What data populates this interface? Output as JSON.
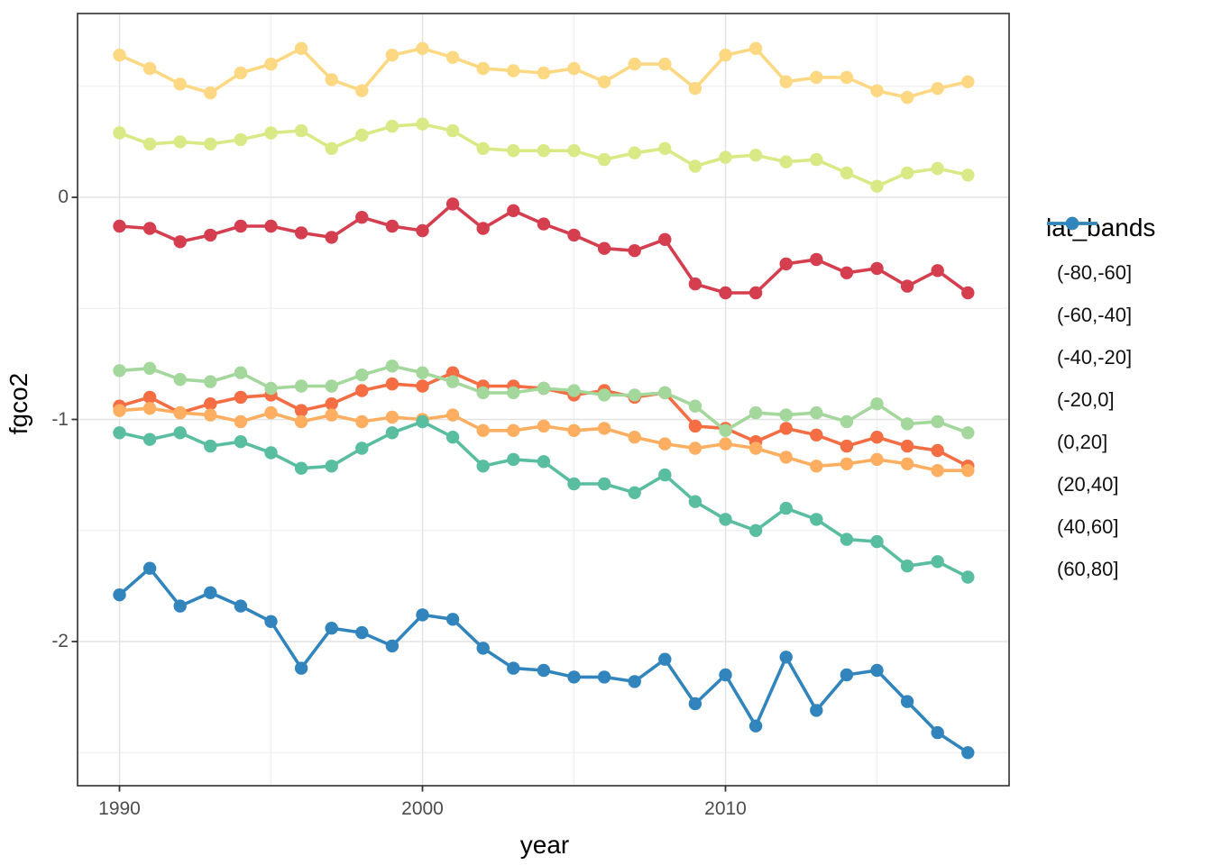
{
  "chart_data": {
    "type": "line",
    "title": "",
    "xlabel": "year",
    "ylabel": "fgco2",
    "legend_title": "lat_bands",
    "legend_position": "right",
    "grid": true,
    "xlim": [
      1988.6,
      2019.4
    ],
    "ylim": [
      -2.7,
      0.83
    ],
    "x_ticks": [
      "1990",
      "2000",
      "2010"
    ],
    "x_tick_values": [
      1990,
      2000,
      2010
    ],
    "y_ticks": [
      "0",
      "-1",
      "-2"
    ],
    "y_tick_values": [
      0,
      -1,
      -2
    ],
    "x_minor_gridlines": [
      1995,
      2005,
      2015
    ],
    "y_minor_gridlines": [
      0.5,
      -0.5,
      -1.5,
      -2.5
    ],
    "x": [
      1990,
      1991,
      1992,
      1993,
      1994,
      1995,
      1996,
      1997,
      1998,
      1999,
      2000,
      2001,
      2002,
      2003,
      2004,
      2005,
      2006,
      2007,
      2008,
      2009,
      2010,
      2011,
      2012,
      2013,
      2014,
      2015,
      2016,
      2017,
      2018
    ],
    "series": [
      {
        "name": "(-80,-60]",
        "color": "#d53e4f",
        "values": [
          -0.13,
          -0.14,
          -0.2,
          -0.17,
          -0.13,
          -0.13,
          -0.16,
          -0.18,
          -0.09,
          -0.13,
          -0.15,
          -0.03,
          -0.14,
          -0.06,
          -0.12,
          -0.17,
          -0.23,
          -0.24,
          -0.19,
          -0.39,
          -0.43,
          -0.43,
          -0.3,
          -0.28,
          -0.34,
          -0.32,
          -0.4,
          -0.33,
          -0.43
        ]
      },
      {
        "name": "(-60,-40]",
        "color": "#f46d43",
        "values": [
          -0.94,
          -0.9,
          -0.97,
          -0.93,
          -0.9,
          -0.89,
          -0.96,
          -0.93,
          -0.87,
          -0.84,
          -0.85,
          -0.79,
          -0.85,
          -0.85,
          -0.86,
          -0.89,
          -0.87,
          -0.9,
          -0.88,
          -1.03,
          -1.04,
          -1.1,
          -1.04,
          -1.07,
          -1.12,
          -1.08,
          -1.12,
          -1.14,
          -1.21
        ]
      },
      {
        "name": "(-40,-20]",
        "color": "#fdae61",
        "values": [
          -0.96,
          -0.95,
          -0.97,
          -0.98,
          -1.01,
          -0.97,
          -1.01,
          -0.98,
          -1.01,
          -0.99,
          -1.0,
          -0.98,
          -1.05,
          -1.05,
          -1.03,
          -1.05,
          -1.04,
          -1.08,
          -1.11,
          -1.13,
          -1.11,
          -1.13,
          -1.17,
          -1.21,
          -1.2,
          -1.18,
          -1.2,
          -1.23,
          -1.23
        ]
      },
      {
        "name": "(-20,0]",
        "color": "#fdd883",
        "values": [
          0.64,
          0.58,
          0.51,
          0.47,
          0.56,
          0.6,
          0.67,
          0.53,
          0.48,
          0.64,
          0.67,
          0.63,
          0.58,
          0.57,
          0.56,
          0.58,
          0.52,
          0.6,
          0.6,
          0.49,
          0.64,
          0.67,
          0.52,
          0.54,
          0.54,
          0.48,
          0.45,
          0.49,
          0.52
        ]
      },
      {
        "name": "(0,20]",
        "color": "#d9e985",
        "values": [
          0.29,
          0.24,
          0.25,
          0.24,
          0.26,
          0.29,
          0.3,
          0.22,
          0.28,
          0.32,
          0.33,
          0.3,
          0.22,
          0.21,
          0.21,
          0.21,
          0.17,
          0.2,
          0.22,
          0.14,
          0.18,
          0.19,
          0.16,
          0.17,
          0.11,
          0.05,
          0.11,
          0.13,
          0.1
        ]
      },
      {
        "name": "(20,40]",
        "color": "#a3d79c",
        "values": [
          -0.78,
          -0.77,
          -0.82,
          -0.83,
          -0.79,
          -0.86,
          -0.85,
          -0.85,
          -0.8,
          -0.76,
          -0.79,
          -0.83,
          -0.88,
          -0.88,
          -0.86,
          -0.87,
          -0.89,
          -0.89,
          -0.88,
          -0.94,
          -1.05,
          -0.97,
          -0.98,
          -0.97,
          -1.01,
          -0.93,
          -1.02,
          -1.01,
          -1.06
        ]
      },
      {
        "name": "(40,60]",
        "color": "#59bd9f",
        "values": [
          -1.06,
          -1.09,
          -1.06,
          -1.12,
          -1.1,
          -1.15,
          -1.22,
          -1.21,
          -1.13,
          -1.06,
          -1.01,
          -1.08,
          -1.21,
          -1.18,
          -1.19,
          -1.29,
          -1.29,
          -1.33,
          -1.25,
          -1.37,
          -1.45,
          -1.5,
          -1.4,
          -1.45,
          -1.54,
          -1.55,
          -1.66,
          -1.64,
          -1.71
        ]
      },
      {
        "name": "(60,80]",
        "color": "#3185bc",
        "values": [
          -1.79,
          -1.67,
          -1.84,
          -1.78,
          -1.84,
          -1.91,
          -2.12,
          -1.94,
          -1.96,
          -2.02,
          -1.88,
          -1.9,
          -2.03,
          -2.12,
          -2.13,
          -2.16,
          -2.16,
          -2.18,
          -2.08,
          -2.28,
          -2.15,
          -2.38,
          -2.07,
          -2.31,
          -2.15,
          -2.13,
          -2.27,
          -2.41,
          -2.5
        ]
      }
    ]
  },
  "style_colors": {
    "grid_major": "#e3e3e3",
    "grid_minor": "#efefef",
    "panel_border": "#2e2e2e",
    "tick_mark": "#333333",
    "tick_text": "#4d4d4d"
  }
}
